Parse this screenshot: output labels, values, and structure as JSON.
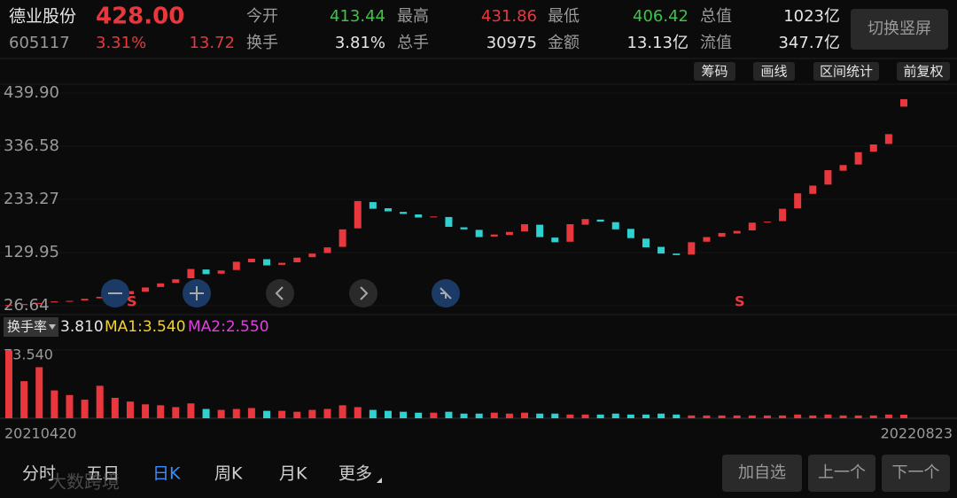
{
  "header": {
    "name": "德业股份",
    "price": "428.00",
    "code": "605117",
    "change_pct": "3.31%",
    "change": "13.72",
    "stats": [
      {
        "label": "今开",
        "value": "413.44",
        "color": "#3ec24a"
      },
      {
        "label": "最高",
        "value": "431.86",
        "color": "#e8383d"
      },
      {
        "label": "最低",
        "value": "406.42",
        "color": "#3ec24a"
      },
      {
        "label": "总值",
        "value": "1023亿",
        "color": "#e6e6e6"
      },
      {
        "label": "换手",
        "value": "3.81%",
        "color": "#e6e6e6"
      },
      {
        "label": "总手",
        "value": "30975",
        "color": "#e6e6e6"
      },
      {
        "label": "金额",
        "value": "13.13亿",
        "color": "#e6e6e6"
      },
      {
        "label": "流值",
        "value": "347.7亿",
        "color": "#e6e6e6"
      }
    ],
    "button": "切换竖屏"
  },
  "tools": [
    "筹码",
    "画线",
    "区间统计",
    "前复权"
  ],
  "chart_data": {
    "type": "candlestick",
    "up_color": "#e8383d",
    "down_color": "#2fd0d0",
    "ylim": [
      26.64,
      439.9
    ],
    "yticks": [
      26.64,
      {
        "value": 129.95,
        "label": "129.95"
      },
      {
        "value": 233.27,
        "label": "233.27"
      },
      {
        "value": 336.58,
        "label": "336.58"
      },
      {
        "value": 439.9,
        "label": "439.90"
      }
    ],
    "open": [
      27,
      28,
      31,
      33,
      35,
      37,
      41,
      45,
      49,
      54,
      63,
      71,
      80,
      97,
      89,
      96,
      111,
      117,
      106,
      111,
      121,
      129,
      141,
      177,
      228,
      216,
      209,
      204,
      199,
      199,
      179,
      174,
      161,
      164,
      171,
      184,
      159,
      151,
      184,
      194,
      189,
      176,
      157,
      141,
      128,
      126,
      151,
      161,
      167,
      173,
      189,
      191,
      216,
      244,
      262,
      289,
      301,
      326,
      341,
      413.44
    ],
    "close": [
      28,
      30,
      32,
      35,
      36,
      40,
      44,
      48,
      55,
      62,
      70,
      78,
      98,
      88,
      95,
      112,
      118,
      105,
      110,
      120,
      128,
      140,
      175,
      230,
      215,
      210,
      205,
      198,
      200,
      180,
      175,
      160,
      165,
      170,
      185,
      160,
      150,
      185,
      195,
      190,
      175,
      158,
      140,
      128,
      125,
      150,
      160,
      168,
      172,
      188,
      190,
      215,
      245,
      260,
      290,
      300,
      325,
      340,
      360,
      428
    ],
    "annotations": [
      "S",
      "S"
    ],
    "x_start": "20210420",
    "x_end": "20220823"
  },
  "indicator": {
    "name": "换手率",
    "value": "3.810",
    "ma1": "MA1:3.540",
    "ma2": "MA2:2.550"
  },
  "volume": {
    "ylim": [
      0,
      73.54
    ],
    "yticks": [
      {
        "value": 73.54,
        "label": "73.540"
      }
    ],
    "values": [
      73,
      40,
      55,
      30,
      25,
      20,
      35,
      22,
      18,
      15,
      14,
      12,
      16,
      10,
      9,
      10,
      11,
      8,
      8,
      7,
      9,
      10,
      14,
      12,
      9,
      8,
      7,
      6,
      6,
      7,
      5,
      5,
      6,
      5,
      6,
      5,
      5,
      4,
      4,
      4,
      5,
      4,
      4,
      5,
      4,
      3,
      3,
      3,
      3,
      3,
      3,
      3,
      4,
      3,
      4,
      3,
      3,
      3,
      4,
      3.81
    ]
  },
  "tabs": [
    "分时",
    "五日",
    "日K",
    "周K",
    "月K",
    "更多"
  ],
  "actions": [
    "加自选",
    "上一个",
    "下一个"
  ],
  "watermark": "大数跨境"
}
